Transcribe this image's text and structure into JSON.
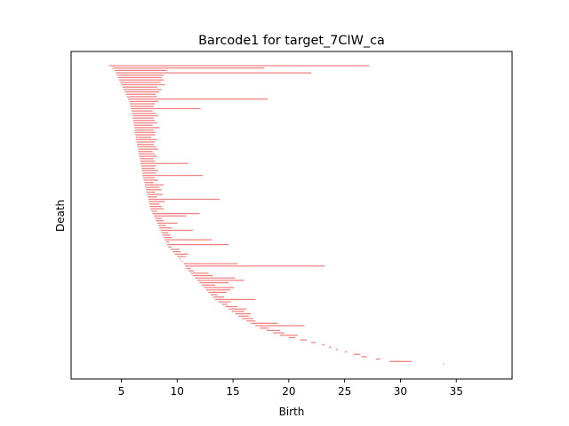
{
  "chart_data": {
    "type": "barcode",
    "title": "Barcode1 for target_7CIW_ca",
    "xlabel": "Birth",
    "ylabel": "Death",
    "xlim": [
      0.5,
      40
    ],
    "xticks": [
      5,
      10,
      15,
      20,
      25,
      30,
      35
    ],
    "y_ticks_shown": false,
    "grid": false,
    "bar_color": "#f07b7b",
    "bars": [
      [
        3.9,
        27.2
      ],
      [
        4.2,
        17.8
      ],
      [
        4.4,
        9.1
      ],
      [
        4.5,
        22.0
      ],
      [
        4.6,
        8.8
      ],
      [
        4.7,
        8.6
      ],
      [
        4.8,
        8.8
      ],
      [
        4.9,
        8.5
      ],
      [
        5.0,
        8.9
      ],
      [
        5.1,
        8.2
      ],
      [
        5.2,
        8.6
      ],
      [
        5.3,
        8.4
      ],
      [
        5.4,
        8.1
      ],
      [
        5.5,
        8.2
      ],
      [
        5.6,
        18.1
      ],
      [
        5.7,
        8.3
      ],
      [
        5.75,
        8.0
      ],
      [
        5.8,
        7.9
      ],
      [
        5.85,
        12.1
      ],
      [
        5.9,
        7.8
      ],
      [
        5.95,
        8.1
      ],
      [
        6.0,
        8.3
      ],
      [
        6.0,
        7.9
      ],
      [
        6.05,
        8.0
      ],
      [
        6.1,
        8.2
      ],
      [
        6.1,
        7.8
      ],
      [
        6.15,
        8.4
      ],
      [
        6.2,
        7.9
      ],
      [
        6.2,
        8.1
      ],
      [
        6.25,
        8.0
      ],
      [
        6.3,
        7.7
      ],
      [
        6.3,
        8.2
      ],
      [
        6.35,
        8.0
      ],
      [
        6.4,
        7.9
      ],
      [
        6.45,
        8.1
      ],
      [
        6.5,
        8.3
      ],
      [
        6.5,
        7.8
      ],
      [
        6.55,
        8.0
      ],
      [
        6.6,
        8.2
      ],
      [
        6.65,
        7.9
      ],
      [
        6.7,
        8.0
      ],
      [
        6.7,
        11.0
      ],
      [
        6.75,
        8.1
      ],
      [
        6.8,
        8.0
      ],
      [
        6.85,
        8.3
      ],
      [
        6.9,
        8.1
      ],
      [
        6.9,
        12.3
      ],
      [
        6.95,
        8.0
      ],
      [
        7.0,
        8.3
      ],
      [
        7.05,
        7.9
      ],
      [
        7.1,
        8.8
      ],
      [
        7.15,
        8.4
      ],
      [
        7.2,
        8.6
      ],
      [
        7.25,
        8.0
      ],
      [
        7.3,
        8.7
      ],
      [
        7.35,
        8.2
      ],
      [
        7.4,
        13.8
      ],
      [
        7.45,
        8.9
      ],
      [
        7.5,
        8.4
      ],
      [
        7.55,
        8.6
      ],
      [
        7.6,
        8.8
      ],
      [
        7.7,
        8.2
      ],
      [
        7.8,
        12.0
      ],
      [
        7.9,
        10.8
      ],
      [
        8.0,
        8.6
      ],
      [
        8.1,
        8.8
      ],
      [
        8.2,
        10.0
      ],
      [
        8.3,
        9.0
      ],
      [
        8.4,
        9.5
      ],
      [
        8.5,
        11.4
      ],
      [
        8.6,
        9.2
      ],
      [
        8.7,
        9.4
      ],
      [
        8.8,
        9.5
      ],
      [
        8.9,
        13.1
      ],
      [
        9.0,
        9.3
      ],
      [
        9.1,
        14.6
      ],
      [
        9.2,
        9.5
      ],
      [
        9.4,
        10.2
      ],
      [
        9.6,
        10.3
      ],
      [
        9.8,
        11.0
      ],
      [
        10.0,
        10.8
      ],
      [
        10.2,
        10.3
      ],
      [
        10.4,
        10.5
      ],
      [
        10.6,
        15.4
      ],
      [
        10.7,
        23.2
      ],
      [
        10.8,
        11.2
      ],
      [
        11.0,
        11.5
      ],
      [
        11.2,
        12.8
      ],
      [
        11.4,
        13.2
      ],
      [
        11.6,
        15.2
      ],
      [
        11.8,
        16.0
      ],
      [
        12.0,
        14.6
      ],
      [
        12.2,
        13.4
      ],
      [
        12.4,
        15.1
      ],
      [
        12.6,
        14.8
      ],
      [
        12.8,
        14.4
      ],
      [
        13.0,
        13.6
      ],
      [
        13.2,
        14.2
      ],
      [
        13.4,
        17.0
      ],
      [
        13.7,
        14.8
      ],
      [
        14.0,
        14.5
      ],
      [
        14.3,
        15.4
      ],
      [
        14.6,
        16.2
      ],
      [
        14.9,
        16.0
      ],
      [
        15.2,
        16.6
      ],
      [
        15.5,
        16.4
      ],
      [
        15.8,
        16.8
      ],
      [
        16.2,
        17.0
      ],
      [
        16.6,
        19.0
      ],
      [
        17.0,
        21.4
      ],
      [
        17.4,
        18.2
      ],
      [
        18.0,
        19.2
      ],
      [
        18.6,
        19.6
      ],
      [
        19.2,
        20.8
      ],
      [
        20.0,
        20.6
      ],
      [
        21.0,
        21.6
      ],
      [
        22.0,
        22.4
      ],
      [
        23.0,
        23.2
      ],
      [
        23.6,
        23.8
      ],
      [
        24.2,
        24.4
      ],
      [
        25.0,
        25.2
      ],
      [
        25.8,
        26.4
      ],
      [
        26.5,
        27.0
      ],
      [
        27.8,
        28.2
      ],
      [
        29.0,
        31.0
      ],
      [
        33.8,
        33.9
      ]
    ]
  }
}
